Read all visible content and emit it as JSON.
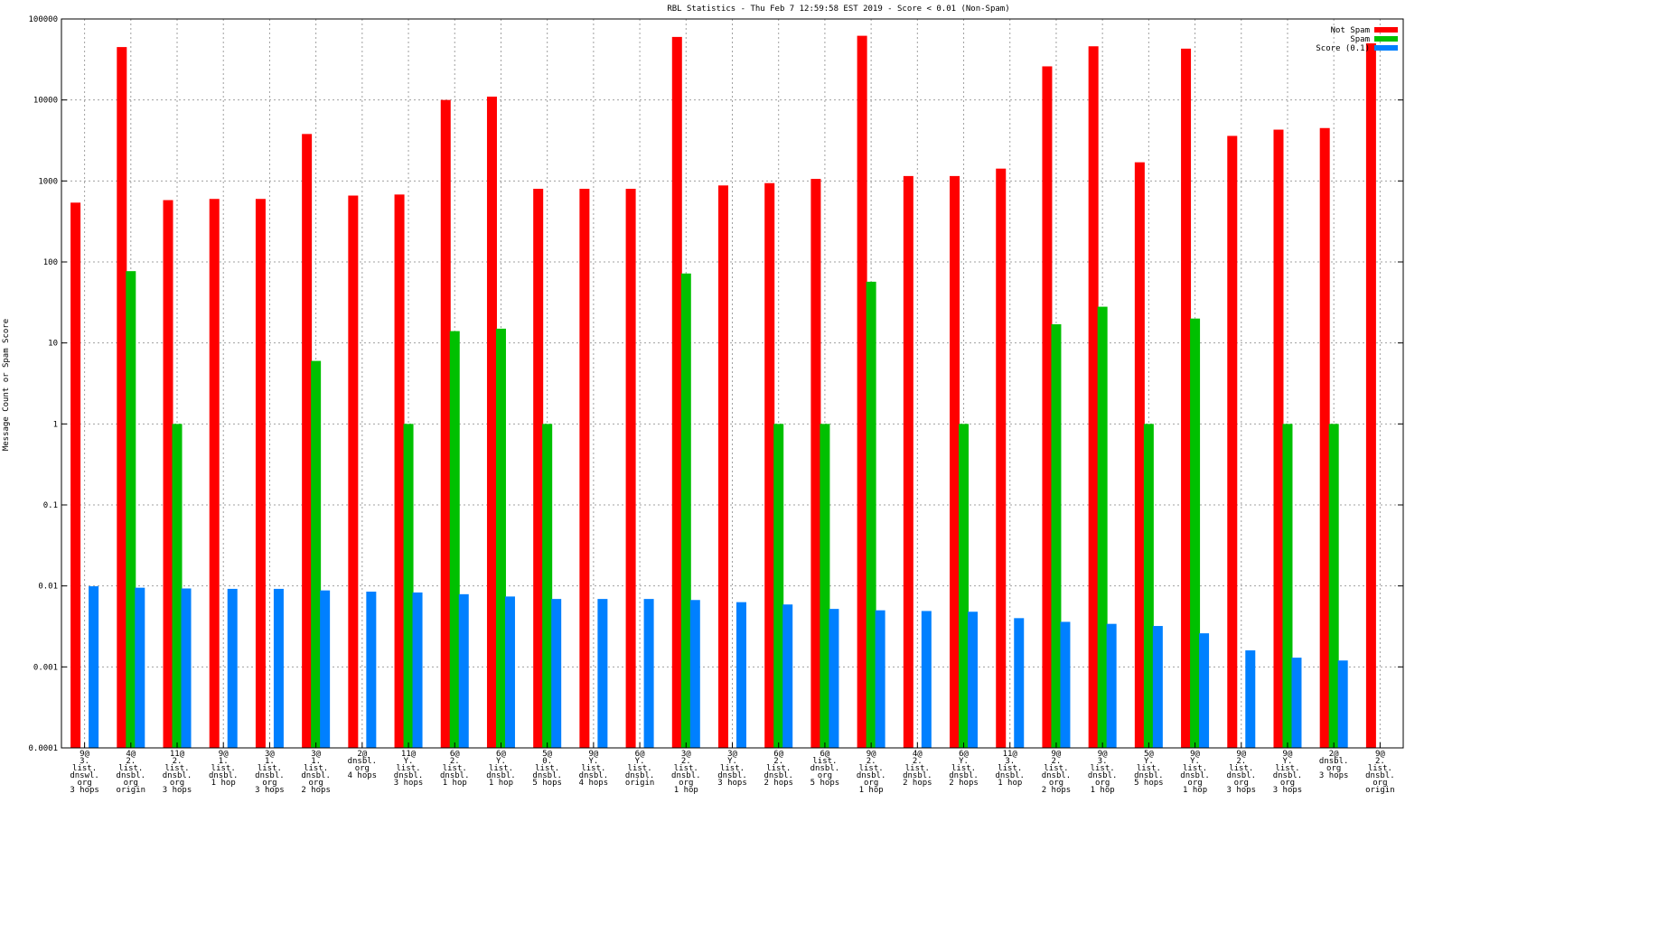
{
  "colors": {
    "not_spam": "#ff0000",
    "spam": "#00c000",
    "score": "#0080ff",
    "grid": "#a0a0a0",
    "axis": "#000000"
  },
  "chart_data": {
    "type": "bar",
    "title": "RBL Statistics - Thu Feb  7 12:59:58 EST 2019 - Score < 0.01 (Non-Spam)",
    "xlabel": "",
    "ylabel": "Message Count or Spam Score",
    "yscale": "log",
    "ylim": [
      0.0001,
      100000
    ],
    "yticks": [
      "0.0001",
      "0.001",
      "0.01",
      "0.1",
      "1",
      "10",
      "100",
      "1000",
      "10000",
      "100000"
    ],
    "grid": true,
    "legend_position": "top-right",
    "categories": [
      [
        "9@",
        "3.",
        "list.",
        "dnswl.",
        "org",
        "3 hops"
      ],
      [
        "4@",
        "2.",
        "list.",
        "dnsbl.",
        "org",
        "origin"
      ],
      [
        "11@",
        "2.",
        "list.",
        "dnsbl.",
        "org",
        "3 hops"
      ],
      [
        "9@",
        "1.",
        "list.",
        "dnsbl.",
        "1 hop"
      ],
      [
        "3@",
        "1.",
        "list.",
        "dnsbl.",
        "org",
        "3 hops"
      ],
      [
        "3@",
        "1.",
        "list.",
        "dnsbl.",
        "org",
        "2 hops"
      ],
      [
        "2@",
        "dnsbl.",
        "org",
        "4 hops"
      ],
      [
        "11@",
        "Y.",
        "list.",
        "dnsbl.",
        "3 hops"
      ],
      [
        "6@",
        "2.",
        "list.",
        "dnsbl.",
        "1 hop"
      ],
      [
        "6@",
        "Y.",
        "list.",
        "dnsbl.",
        "1 hop"
      ],
      [
        "5@",
        "0.",
        "list.",
        "dnsbl.",
        "5 hops"
      ],
      [
        "9@",
        "Y.",
        "list.",
        "dnsbl.",
        "4 hops"
      ],
      [
        "6@",
        "Y.",
        "list.",
        "dnsbl.",
        "origin"
      ],
      [
        "3@",
        "2.",
        "list.",
        "dnsbl.",
        "org",
        "1 hop"
      ],
      [
        "3@",
        "Y.",
        "list.",
        "dnsbl.",
        "3 hops"
      ],
      [
        "6@",
        "2.",
        "list.",
        "dnsbl.",
        "2 hops"
      ],
      [
        "6@",
        "list.",
        "dnsbl.",
        "org",
        "5 hops"
      ],
      [
        "9@",
        "2.",
        "list.",
        "dnsbl.",
        "org",
        "1 hop"
      ],
      [
        "4@",
        "2.",
        "list.",
        "dnsbl.",
        "2 hops"
      ],
      [
        "6@",
        "Y.",
        "list.",
        "dnsbl.",
        "2 hops"
      ],
      [
        "11@",
        "3.",
        "list.",
        "dnsbl.",
        "1 hop"
      ],
      [
        "9@",
        "2.",
        "list.",
        "dnsbl.",
        "org",
        "2 hops"
      ],
      [
        "9@",
        "3.",
        "list.",
        "dnsbl.",
        "org",
        "1 hop"
      ],
      [
        "5@",
        "Y.",
        "list.",
        "dnsbl.",
        "5 hops"
      ],
      [
        "9@",
        "Y.",
        "list.",
        "dnsbl.",
        "org",
        "1 hop"
      ],
      [
        "9@",
        "2.",
        "list.",
        "dnsbl.",
        "org",
        "3 hops"
      ],
      [
        "9@",
        "Y.",
        "list.",
        "dnsbl.",
        "org",
        "3 hops"
      ],
      [
        "2@",
        "dnsbl.",
        "org",
        "3 hops"
      ],
      [
        "9@",
        "2.",
        "list.",
        "dnsbl.",
        "org",
        "origin"
      ]
    ],
    "series": [
      {
        "name": "Not Spam",
        "color": "#ff0000",
        "values": [
          540,
          45000,
          580,
          600,
          600,
          3800,
          660,
          680,
          10000,
          11000,
          800,
          800,
          800,
          60000,
          880,
          940,
          1060,
          62000,
          1150,
          1150,
          1420,
          26000,
          46000,
          1700,
          43000,
          3600,
          4300,
          4500,
          50000
        ]
      },
      {
        "name": "Spam",
        "color": "#00c000",
        "values": [
          null,
          77,
          1,
          null,
          null,
          6,
          null,
          1,
          14,
          15,
          1,
          null,
          null,
          72,
          null,
          1,
          1,
          57,
          null,
          1,
          null,
          17,
          28,
          1,
          20,
          null,
          1,
          1,
          null
        ]
      },
      {
        "name": "Score (0.1)",
        "color": "#0080ff",
        "values": [
          0.0099,
          0.0095,
          0.0093,
          0.0092,
          0.0092,
          0.0088,
          0.0085,
          0.0083,
          0.0079,
          0.0074,
          0.0069,
          0.0069,
          0.0069,
          0.0067,
          0.0063,
          0.0059,
          0.0052,
          0.005,
          0.0049,
          0.0048,
          0.004,
          0.0036,
          0.0034,
          0.0032,
          0.0026,
          0.0016,
          0.0013,
          0.0012,
          null
        ]
      }
    ]
  }
}
